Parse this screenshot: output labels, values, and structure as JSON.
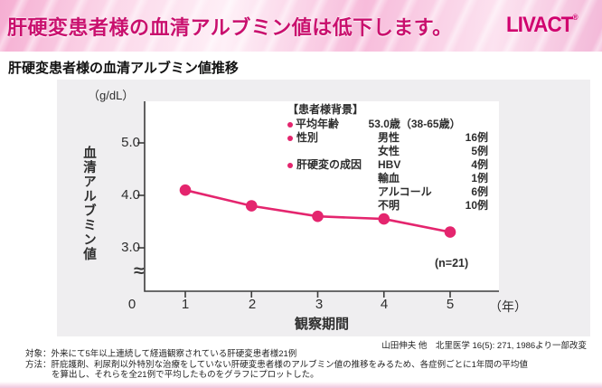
{
  "header": {
    "title": "肝硬変患者様の血清アルブミン値は低下します。",
    "logo": "LIVACT",
    "logo_mark": "®"
  },
  "section": {
    "title": "肝硬変患者様の血清アルブミン値推移"
  },
  "chart_data": {
    "type": "line",
    "title": "肝硬変患者様の血清アルブミン値推移",
    "unit_label": "（g/dL）",
    "ylabel": "血清アルブミン値",
    "xlabel": "観察期間",
    "x_unit": "（年）",
    "series": [
      {
        "name": "血清アルブミン値 (平均, n=21)",
        "x": [
          1,
          2,
          3,
          4,
          5
        ],
        "values": [
          4.1,
          3.8,
          3.6,
          3.55,
          3.3
        ]
      }
    ],
    "x_ticks": [
      "0",
      "1",
      "2",
      "3",
      "4",
      "5"
    ],
    "y_ticks": [
      "5.0",
      "4.0",
      "3.0"
    ],
    "y_tick_values": [
      5.0,
      4.0,
      3.0
    ],
    "ylim_visible": [
      3.0,
      5.5
    ],
    "axis_break": "≈",
    "n_label": "(n=21)",
    "grid": false,
    "legend_position": "upper right inside plot"
  },
  "legend": {
    "title": "【患者様背景】",
    "rows": [
      {
        "bullet": true,
        "label": "平均年齢",
        "key": "53.0歳（38-65歳）",
        "value": ""
      },
      {
        "bullet": true,
        "label": "性別",
        "key": "男性",
        "value": "16例"
      },
      {
        "bullet": false,
        "label": "",
        "key": "女性",
        "value": "5例"
      },
      {
        "bullet": true,
        "label": "肝硬変の成因",
        "key": "HBV",
        "value": "4例"
      },
      {
        "bullet": false,
        "label": "",
        "key": "輸血",
        "value": "1例"
      },
      {
        "bullet": false,
        "label": "",
        "key": "アルコール",
        "value": "6例"
      },
      {
        "bullet": false,
        "label": "",
        "key": "不明",
        "value": "10例"
      }
    ]
  },
  "citation": "山田伸夫 他　北里医学 16(5): 271, 1986より一部改変",
  "notes": [
    "対象：外来にて5年以上連続して経過観察されている肝硬変患者様21例",
    "方法：肝庇護剤、利尿剤以外特別な治療をしていない肝硬変患者様のアルブミン値の推移をみるため、各症例ごとに1年間の平均値",
    "を算出し、それらを全21例で平均したものをグラフにプロットした。"
  ],
  "colors": {
    "accent": "#e4256e",
    "banner_text": "#c9106e",
    "logo": "#d0006e",
    "panel_bg": "#efeef0",
    "axis": "#3c3c3c"
  }
}
